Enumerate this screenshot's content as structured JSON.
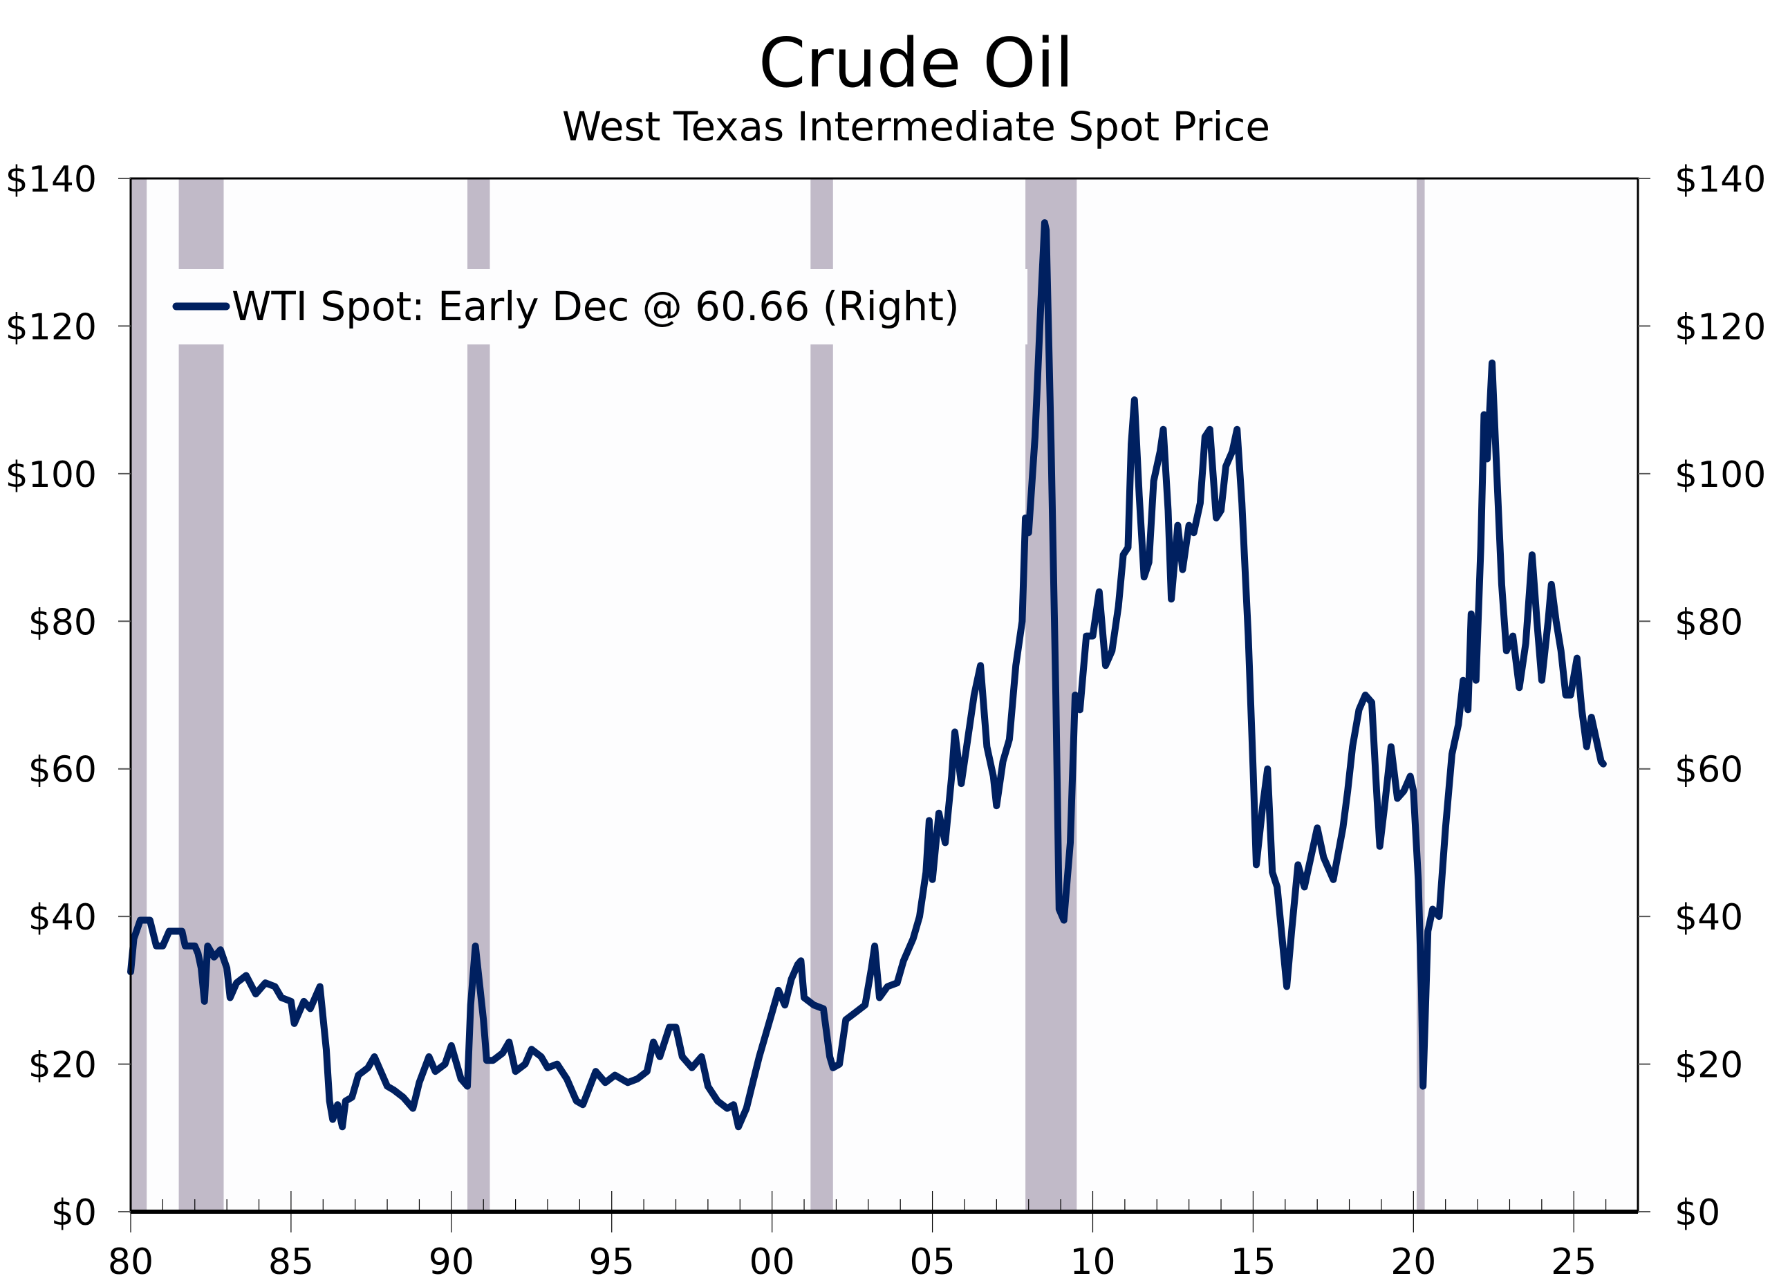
{
  "chart_data": {
    "type": "line",
    "title": "Crude Oil",
    "subtitle": "West Texas Intermediate Spot Price",
    "xlabel": "",
    "ylabel": "",
    "xlim": [
      1980,
      2027
    ],
    "ylim": [
      0,
      140
    ],
    "x_ticks": [
      1980,
      1985,
      1990,
      1995,
      2000,
      2005,
      2010,
      2015,
      2020,
      2025
    ],
    "x_tick_labels": [
      "80",
      "85",
      "90",
      "95",
      "00",
      "05",
      "10",
      "15",
      "20",
      "25"
    ],
    "y_ticks": [
      0,
      20,
      40,
      60,
      80,
      100,
      120,
      140
    ],
    "y_tick_labels_left": [
      "$0",
      "$20",
      "$40",
      "$60",
      "$80",
      "$100",
      "$120",
      "$140"
    ],
    "y_tick_labels_right": [
      "$0",
      "$20",
      "$40",
      "$60",
      "$80",
      "$100",
      "$120",
      "$140"
    ],
    "grid": false,
    "legend_position": "top-left",
    "recession_color": "#c1bac8",
    "recessions": [
      [
        1980.0,
        1980.5
      ],
      [
        1981.5,
        1982.9
      ],
      [
        1990.5,
        1991.2
      ],
      [
        2001.2,
        2001.9
      ],
      [
        2007.9,
        2009.5
      ],
      [
        2020.1,
        2020.35
      ]
    ],
    "series": [
      {
        "name": "WTI Spot: Early Dec @ 60.66 (Right)",
        "color": "#002060",
        "x": [
          1980.0,
          1980.1,
          1980.3,
          1980.6,
          1980.8,
          1981.0,
          1981.2,
          1981.6,
          1981.7,
          1982.0,
          1982.1,
          1982.2,
          1982.3,
          1982.4,
          1982.6,
          1982.8,
          1983.0,
          1983.1,
          1983.3,
          1983.6,
          1983.9,
          1984.2,
          1984.5,
          1984.7,
          1985.0,
          1985.1,
          1985.4,
          1985.6,
          1985.9,
          1986.1,
          1986.2,
          1986.3,
          1986.45,
          1986.6,
          1986.7,
          1986.9,
          1987.1,
          1987.4,
          1987.6,
          1987.8,
          1988.0,
          1988.2,
          1988.5,
          1988.8,
          1989.0,
          1989.3,
          1989.5,
          1989.8,
          1990.0,
          1990.3,
          1990.5,
          1990.6,
          1990.75,
          1990.9,
          1991.0,
          1991.1,
          1991.3,
          1991.6,
          1991.8,
          1992.0,
          1992.3,
          1992.5,
          1992.8,
          1993.0,
          1993.3,
          1993.6,
          1993.9,
          1994.1,
          1994.5,
          1994.8,
          1995.1,
          1995.5,
          1995.8,
          1996.1,
          1996.3,
          1996.5,
          1996.8,
          1997.0,
          1997.2,
          1997.5,
          1997.8,
          1998.0,
          1998.3,
          1998.6,
          1998.8,
          1998.95,
          1999.2,
          1999.4,
          1999.6,
          1999.8,
          2000.0,
          2000.2,
          2000.4,
          2000.6,
          2000.8,
          2000.9,
          2001.0,
          2001.3,
          2001.6,
          2001.8,
          2001.9,
          2002.1,
          2002.3,
          2002.6,
          2002.9,
          2003.1,
          2003.2,
          2003.35,
          2003.6,
          2003.9,
          2004.1,
          2004.4,
          2004.6,
          2004.8,
          2004.9,
          2005.0,
          2005.2,
          2005.4,
          2005.6,
          2005.7,
          2005.9,
          2006.1,
          2006.3,
          2006.5,
          2006.7,
          2006.9,
          2007.0,
          2007.2,
          2007.4,
          2007.6,
          2007.8,
          2007.9,
          2008.0,
          2008.2,
          2008.4,
          2008.5,
          2008.55,
          2008.7,
          2008.85,
          2008.95,
          2009.1,
          2009.3,
          2009.45,
          2009.6,
          2009.8,
          2010.0,
          2010.2,
          2010.4,
          2010.6,
          2010.8,
          2010.95,
          2011.1,
          2011.2,
          2011.3,
          2011.45,
          2011.6,
          2011.75,
          2011.9,
          2012.1,
          2012.2,
          2012.35,
          2012.45,
          2012.65,
          2012.8,
          2013.0,
          2013.15,
          2013.35,
          2013.5,
          2013.65,
          2013.85,
          2014.0,
          2014.15,
          2014.35,
          2014.5,
          2014.65,
          2014.85,
          2015.0,
          2015.1,
          2015.3,
          2015.45,
          2015.6,
          2015.75,
          2015.95,
          2016.05,
          2016.2,
          2016.4,
          2016.6,
          2016.8,
          2017.0,
          2017.2,
          2017.5,
          2017.8,
          2017.95,
          2018.1,
          2018.3,
          2018.5,
          2018.7,
          2018.85,
          2018.95,
          2019.1,
          2019.3,
          2019.5,
          2019.7,
          2019.9,
          2020.0,
          2020.15,
          2020.25,
          2020.3,
          2020.45,
          2020.6,
          2020.8,
          2021.0,
          2021.2,
          2021.4,
          2021.55,
          2021.7,
          2021.8,
          2021.95,
          2022.1,
          2022.2,
          2022.3,
          2022.45,
          2022.6,
          2022.75,
          2022.9,
          2023.1,
          2023.3,
          2023.5,
          2023.7,
          2023.85,
          2024.0,
          2024.2,
          2024.3,
          2024.45,
          2024.6,
          2024.75,
          2024.9,
          2025.1,
          2025.25,
          2025.4,
          2025.55,
          2025.7,
          2025.85,
          2025.92
        ],
        "values": [
          32.5,
          37,
          39.5,
          39.5,
          36,
          36,
          38,
          38,
          36,
          36,
          35,
          33,
          28.5,
          36,
          34.5,
          35.5,
          33,
          29,
          31,
          32,
          29.5,
          31,
          30.5,
          29,
          28.5,
          25.5,
          28.5,
          27.5,
          30.5,
          22,
          15,
          12.5,
          14.5,
          11.5,
          15,
          15.5,
          18.5,
          19.5,
          21,
          19,
          17,
          16.5,
          15.5,
          14,
          17.5,
          21,
          19,
          20,
          22.5,
          18,
          17,
          28,
          36,
          30,
          26,
          20.5,
          20.5,
          21.5,
          23,
          19,
          20,
          22,
          21,
          19.5,
          20,
          18,
          15,
          14.5,
          19,
          17.5,
          18.5,
          17.5,
          18,
          19,
          23,
          21,
          25,
          25,
          21,
          19.5,
          21,
          17,
          15,
          14,
          14.5,
          11.5,
          14,
          17.5,
          21,
          24,
          27,
          30,
          28,
          31.5,
          33.5,
          34,
          29,
          28,
          27.5,
          21,
          19.5,
          20,
          26,
          27,
          28,
          33,
          36,
          29,
          30.5,
          31,
          34,
          37,
          40,
          46,
          53,
          45,
          54,
          50,
          59,
          65,
          58,
          64,
          70,
          74,
          63,
          59,
          55,
          61,
          64,
          74,
          80,
          94,
          92,
          105,
          125,
          134,
          133,
          104,
          70,
          41,
          39.5,
          50,
          70,
          68,
          78,
          78,
          84,
          74,
          76,
          82,
          89,
          90,
          104,
          110,
          97,
          86,
          88,
          99,
          103,
          106,
          95,
          83,
          93,
          87,
          93,
          92,
          96,
          105,
          106,
          94,
          95,
          101,
          103,
          106,
          96,
          78,
          60,
          47,
          55,
          60,
          46,
          44,
          35,
          30.5,
          38,
          47,
          44,
          48,
          52,
          48,
          45,
          52,
          57,
          63,
          68,
          70,
          69,
          57,
          49.5,
          55,
          63,
          56,
          57,
          59,
          57,
          45,
          30,
          17,
          38,
          41,
          40,
          52,
          62,
          66,
          72,
          68,
          81,
          72,
          90,
          108,
          102,
          115,
          100,
          85,
          76,
          78,
          71,
          77,
          89,
          80,
          72,
          80,
          85,
          80,
          76,
          70,
          70,
          75,
          68,
          63,
          67,
          64,
          61,
          60.66
        ]
      }
    ]
  }
}
